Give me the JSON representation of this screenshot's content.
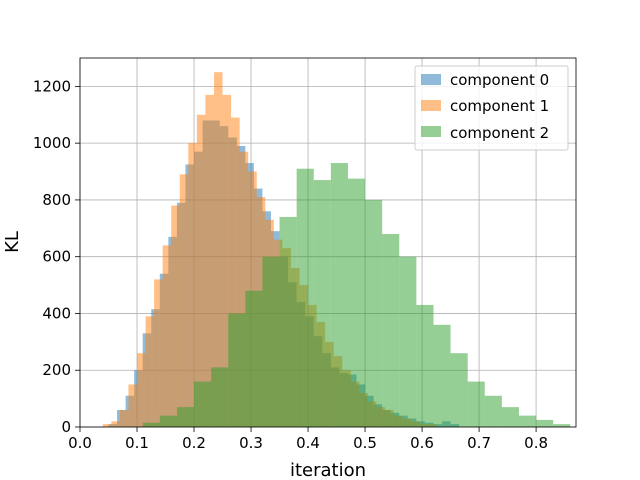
{
  "chart_data": {
    "type": "histogram",
    "xlabel": "iteration",
    "ylabel": "KL",
    "xlim": [
      0.0,
      0.87
    ],
    "ylim": [
      0,
      1300
    ],
    "xticks": [
      "0.0",
      "0.1",
      "0.2",
      "0.3",
      "0.4",
      "0.5",
      "0.6",
      "0.7",
      "0.8"
    ],
    "yticks": [
      "0",
      "200",
      "400",
      "600",
      "800",
      "1000",
      "1200"
    ],
    "grid": true,
    "legend_position": "top-right",
    "series": [
      {
        "name": "component 0",
        "color": "#1f77b4",
        "bins": [
          [
            0.05,
            0.065,
            10
          ],
          [
            0.065,
            0.08,
            60
          ],
          [
            0.08,
            0.095,
            110
          ],
          [
            0.095,
            0.11,
            200
          ],
          [
            0.11,
            0.125,
            330
          ],
          [
            0.125,
            0.14,
            415
          ],
          [
            0.14,
            0.155,
            540
          ],
          [
            0.155,
            0.17,
            670
          ],
          [
            0.17,
            0.185,
            790
          ],
          [
            0.185,
            0.2,
            925
          ],
          [
            0.2,
            0.215,
            970
          ],
          [
            0.215,
            0.23,
            1080
          ],
          [
            0.23,
            0.245,
            1080
          ],
          [
            0.245,
            0.26,
            1060
          ],
          [
            0.26,
            0.275,
            1020
          ],
          [
            0.275,
            0.29,
            990
          ],
          [
            0.29,
            0.305,
            930
          ],
          [
            0.305,
            0.32,
            840
          ],
          [
            0.32,
            0.335,
            760
          ],
          [
            0.335,
            0.35,
            690
          ],
          [
            0.35,
            0.365,
            600
          ],
          [
            0.365,
            0.38,
            510
          ],
          [
            0.38,
            0.395,
            440
          ],
          [
            0.395,
            0.41,
            390
          ],
          [
            0.41,
            0.425,
            320
          ],
          [
            0.425,
            0.44,
            260
          ],
          [
            0.44,
            0.455,
            210
          ],
          [
            0.455,
            0.47,
            190
          ],
          [
            0.47,
            0.485,
            185
          ],
          [
            0.485,
            0.5,
            150
          ],
          [
            0.5,
            0.515,
            110
          ],
          [
            0.515,
            0.53,
            80
          ],
          [
            0.53,
            0.545,
            60
          ],
          [
            0.545,
            0.56,
            50
          ],
          [
            0.56,
            0.575,
            40
          ],
          [
            0.575,
            0.59,
            30
          ],
          [
            0.59,
            0.605,
            20
          ],
          [
            0.605,
            0.62,
            15
          ],
          [
            0.62,
            0.635,
            10
          ],
          [
            0.635,
            0.65,
            20
          ],
          [
            0.65,
            0.665,
            10
          ]
        ]
      },
      {
        "name": "component 1",
        "color": "#ff7f0e",
        "bins": [
          [
            0.04,
            0.055,
            10
          ],
          [
            0.055,
            0.07,
            20
          ],
          [
            0.07,
            0.085,
            60
          ],
          [
            0.085,
            0.1,
            150
          ],
          [
            0.1,
            0.115,
            260
          ],
          [
            0.115,
            0.13,
            390
          ],
          [
            0.13,
            0.145,
            520
          ],
          [
            0.145,
            0.16,
            640
          ],
          [
            0.16,
            0.175,
            780
          ],
          [
            0.175,
            0.19,
            890
          ],
          [
            0.19,
            0.205,
            1000
          ],
          [
            0.205,
            0.22,
            1100
          ],
          [
            0.22,
            0.235,
            1170
          ],
          [
            0.235,
            0.25,
            1250
          ],
          [
            0.25,
            0.265,
            1170
          ],
          [
            0.265,
            0.28,
            1090
          ],
          [
            0.28,
            0.295,
            970
          ],
          [
            0.295,
            0.31,
            900
          ],
          [
            0.31,
            0.325,
            810
          ],
          [
            0.325,
            0.34,
            730
          ],
          [
            0.34,
            0.355,
            660
          ],
          [
            0.355,
            0.37,
            630
          ],
          [
            0.37,
            0.385,
            560
          ],
          [
            0.385,
            0.4,
            500
          ],
          [
            0.4,
            0.415,
            430
          ],
          [
            0.415,
            0.43,
            370
          ],
          [
            0.43,
            0.445,
            300
          ],
          [
            0.445,
            0.46,
            250
          ],
          [
            0.46,
            0.475,
            200
          ],
          [
            0.475,
            0.49,
            160
          ],
          [
            0.49,
            0.505,
            120
          ],
          [
            0.505,
            0.52,
            90
          ],
          [
            0.52,
            0.535,
            70
          ],
          [
            0.535,
            0.55,
            60
          ],
          [
            0.55,
            0.565,
            40
          ],
          [
            0.565,
            0.58,
            30
          ],
          [
            0.58,
            0.595,
            20
          ],
          [
            0.595,
            0.61,
            10
          ],
          [
            0.61,
            0.625,
            10
          ]
        ]
      },
      {
        "name": "component 2",
        "color": "#2ca02c",
        "bins": [
          [
            0.11,
            0.14,
            15
          ],
          [
            0.14,
            0.17,
            40
          ],
          [
            0.17,
            0.2,
            70
          ],
          [
            0.2,
            0.23,
            160
          ],
          [
            0.23,
            0.26,
            210
          ],
          [
            0.26,
            0.29,
            400
          ],
          [
            0.29,
            0.32,
            480
          ],
          [
            0.32,
            0.35,
            600
          ],
          [
            0.35,
            0.38,
            740
          ],
          [
            0.38,
            0.41,
            910
          ],
          [
            0.41,
            0.44,
            870
          ],
          [
            0.44,
            0.47,
            930
          ],
          [
            0.47,
            0.5,
            875
          ],
          [
            0.5,
            0.53,
            800
          ],
          [
            0.53,
            0.56,
            680
          ],
          [
            0.56,
            0.59,
            600
          ],
          [
            0.59,
            0.62,
            430
          ],
          [
            0.62,
            0.65,
            360
          ],
          [
            0.65,
            0.68,
            260
          ],
          [
            0.68,
            0.71,
            160
          ],
          [
            0.71,
            0.74,
            110
          ],
          [
            0.74,
            0.77,
            70
          ],
          [
            0.77,
            0.8,
            40
          ],
          [
            0.8,
            0.83,
            25
          ],
          [
            0.83,
            0.86,
            10
          ]
        ]
      }
    ]
  }
}
